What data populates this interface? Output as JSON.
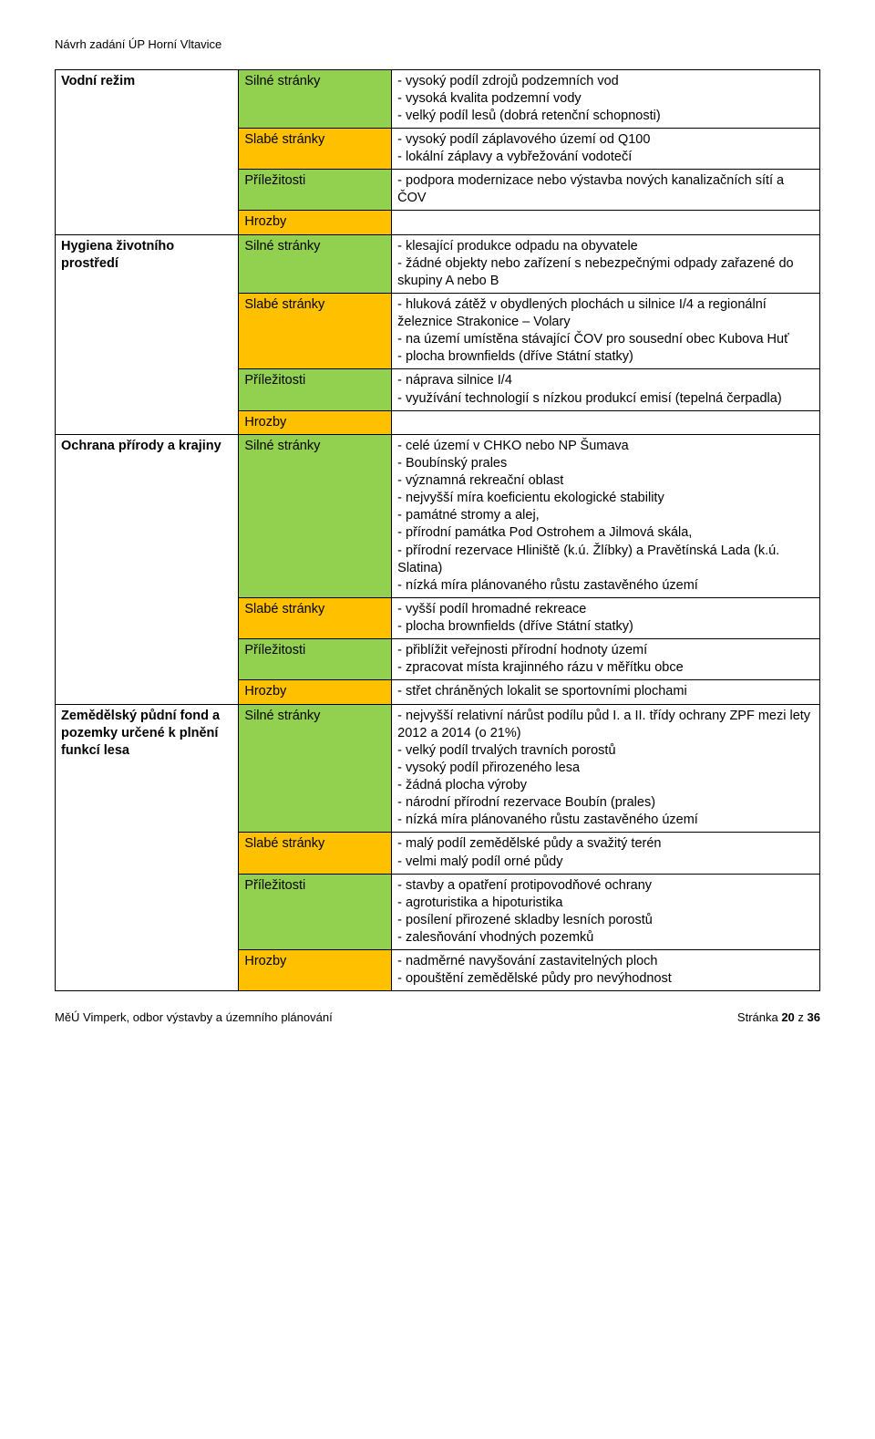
{
  "doc_header": "Návrh zadání ÚP Horní Vltavice",
  "footer_left": "MěÚ Vimperk, odbor výstavby a územního plánování",
  "footer_right_prefix": "Stránka ",
  "footer_page": "20",
  "footer_right_mid": " z ",
  "footer_total": "36",
  "labels": {
    "silne": "Silné stránky",
    "slabe": "Slabé stránky",
    "prilezitosti": "Příležitosti",
    "hrozby": "Hrozby"
  },
  "topics": {
    "vodni": "Vodní režim",
    "hygiena": "Hygiena životního prostředí",
    "ochrana": "Ochrana přírody a krajiny",
    "zemedelsky": "Zemědělský půdní fond a pozemky určené k plnění funkcí lesa"
  },
  "content": {
    "vodni_silne": "- vysoký podíl zdrojů podzemních vod\n- vysoká kvalita podzemní vody\n- velký podíl lesů (dobrá retenční schopnosti)",
    "vodni_slabe": "- vysoký podíl záplavového území od Q100\n- lokální záplavy a vybřežování vodotečí",
    "vodni_pril": "- podpora modernizace nebo výstavba nových kanalizačních sítí a ČOV",
    "vodni_hrozby": "",
    "hygiena_silne": "- klesající produkce odpadu na obyvatele\n- žádné objekty nebo zařízení s nebezpečnými odpady zařazené do skupiny A nebo B",
    "hygiena_slabe": "- hluková zátěž v obydlených plochách u silnice I/4 a regionální železnice Strakonice – Volary\n- na území umístěna stávající ČOV pro sousední obec Kubova Huť\n- plocha brownfields (dříve Státní statky)",
    "hygiena_pril": "- náprava silnice I/4\n- využívání technologií s nízkou produkcí emisí (tepelná čerpadla)",
    "hygiena_hrozby": "",
    "ochrana_silne": "- celé území v CHKO nebo NP Šumava\n- Boubínský prales\n- významná rekreační oblast\n- nejvyšší míra koeficientu ekologické stability\n- památné stromy a alej,\n- přírodní památka  Pod Ostrohem a Jilmová skála,\n- přírodní rezervace Hliniště (k.ú. Žlíbky) a Pravětínská Lada (k.ú. Slatina)\n- nízká míra plánovaného růstu zastavěného území",
    "ochrana_slabe": "- vyšší podíl hromadné rekreace\n- plocha brownfields (dříve Státní statky)",
    "ochrana_pril": "- přiblížit veřejnosti přírodní hodnoty území\n- zpracovat místa krajinného rázu v měřítku obce",
    "ochrana_hrozby": "- střet chráněných lokalit se sportovními plochami",
    "zem_silne": "- nejvyšší relativní nárůst podílu půd I. a II. třídy ochrany ZPF mezi lety 2012 a 2014 (o 21%)\n- velký podíl trvalých travních porostů\n- vysoký podíl přirozeného lesa\n- žádná plocha výroby\n- národní přírodní  rezervace Boubín (prales)\n- nízká míra plánovaného růstu zastavěného území",
    "zem_slabe": "- malý podíl zemědělské půdy a svažitý terén\n- velmi malý podíl orné půdy",
    "zem_pril": "- stavby a opatření protipovodňové ochrany\n- agroturistika a hipoturistika\n- posílení přirozené skladby lesních porostů\n- zalesňování vhodných pozemků",
    "zem_hrozby": "- nadměrné navyšování zastavitelných ploch\n- opouštění zemědělské půdy pro nevýhodnost"
  },
  "colors": {
    "green": "#92d050",
    "orange": "#ffc000",
    "border": "#000000",
    "text": "#000000",
    "background": "#ffffff"
  }
}
